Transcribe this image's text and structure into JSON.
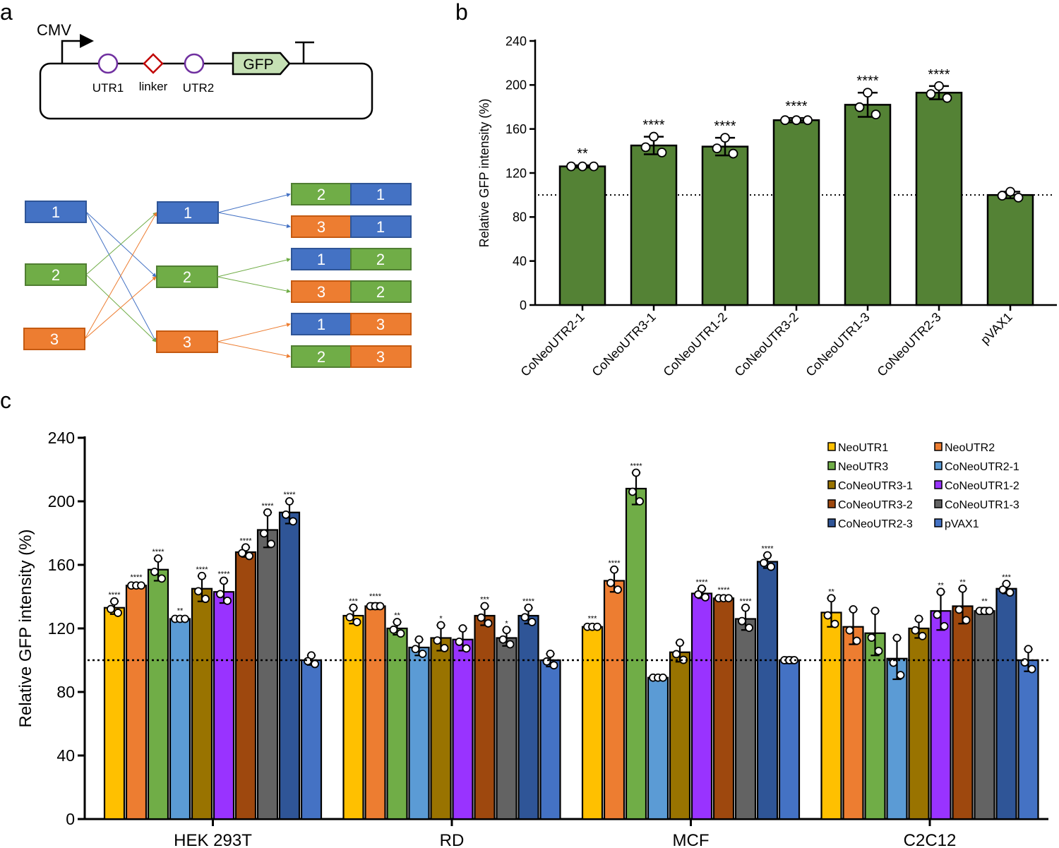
{
  "panel_labels": {
    "a": "a",
    "b": "b",
    "c": "c"
  },
  "diagram": {
    "promoter": "CMV",
    "utr1": "UTR1",
    "linker": "linker",
    "utr2": "UTR2",
    "gene": "GFP",
    "nums": [
      "1",
      "2",
      "3"
    ],
    "colors": {
      "1": "#4472C4",
      "2": "#70AD47",
      "3": "#ED7D31"
    },
    "combinations": [
      [
        "2",
        "1"
      ],
      [
        "3",
        "1"
      ],
      [
        "1",
        "2"
      ],
      [
        "3",
        "2"
      ],
      [
        "1",
        "3"
      ],
      [
        "2",
        "3"
      ]
    ]
  },
  "chart_data": [
    {
      "type": "bar",
      "title": "",
      "xlabel": "",
      "ylabel": "Relative GFP intensity (%)",
      "ylim": [
        0,
        240
      ],
      "yticks": [
        0,
        40,
        80,
        120,
        160,
        200,
        240
      ],
      "reference_line": 100,
      "bar_color": "#548235",
      "categories": [
        "CoNeoUTR2-1",
        "CoNeoUTR3-1",
        "CoNeoUTR1-2",
        "CoNeoUTR3-2",
        "CoNeoUTR1-3",
        "CoNeoUTR2-3",
        "pVAX1"
      ],
      "values": [
        126,
        145,
        144,
        168,
        182,
        193,
        100
      ],
      "sd": [
        1,
        8,
        8,
        2,
        11,
        6,
        3
      ],
      "significance": [
        "**",
        "****",
        "****",
        "****",
        "****",
        "****",
        ""
      ]
    },
    {
      "type": "bar",
      "title": "",
      "xlabel": "",
      "ylabel": "Relative GFP intensity (%)",
      "ylim": [
        0,
        240
      ],
      "yticks": [
        0,
        40,
        80,
        120,
        160,
        200,
        240
      ],
      "reference_line": 100,
      "legend_position": "top-right",
      "categories": [
        "HEK 293T",
        "RD",
        "MCF",
        "C2C12"
      ],
      "series_names": [
        "NeoUTR1",
        "NeoUTR2",
        "NeoUTR3",
        "CoNeoUTR2-1",
        "CoNeoUTR3-1",
        "CoNeoUTR1-2",
        "CoNeoUTR3-2",
        "CoNeoUTR1-3",
        "CoNeoUTR2-3",
        "pVAX1"
      ],
      "series_colors": [
        "#FFC000",
        "#ED7D31",
        "#70AD47",
        "#5B9BD5",
        "#997300",
        "#9933FF",
        "#9E480E",
        "#636363",
        "#2F5597",
        "#4472C4"
      ],
      "groups": [
        {
          "name": "HEK 293T",
          "values": [
            133,
            147,
            157,
            126,
            145,
            143,
            168,
            182,
            193,
            100
          ],
          "sd": [
            4,
            1,
            7,
            1,
            8,
            7,
            3,
            11,
            7,
            3
          ],
          "significance": [
            "****",
            "****",
            "****",
            "**",
            "****",
            "****",
            "****",
            "****",
            "****",
            ""
          ]
        },
        {
          "name": "RD",
          "values": [
            128,
            134,
            120,
            108,
            114,
            113,
            128,
            114,
            128,
            100
          ],
          "sd": [
            5,
            2,
            4,
            5,
            8,
            7,
            6,
            5,
            5,
            4
          ],
          "significance": [
            "***",
            "****",
            "**",
            "",
            "*",
            "",
            "***",
            "*",
            "****",
            ""
          ]
        },
        {
          "name": "MCF",
          "values": [
            121,
            150,
            208,
            89,
            105,
            142,
            139,
            126,
            162,
            100
          ],
          "sd": [
            1,
            7,
            10,
            1,
            6,
            3,
            1,
            7,
            4,
            2
          ],
          "significance": [
            "***",
            "****",
            "****",
            "",
            "",
            "****",
            "****",
            "****",
            "****",
            ""
          ]
        },
        {
          "name": "C2C12",
          "values": [
            130,
            121,
            117,
            101,
            120,
            131,
            134,
            131,
            145,
            100
          ],
          "sd": [
            9,
            11,
            14,
            13,
            6,
            12,
            11,
            2,
            3,
            7
          ],
          "significance": [
            "**",
            "",
            "",
            "",
            "",
            "**",
            "**",
            "**",
            "***",
            ""
          ]
        }
      ]
    }
  ]
}
